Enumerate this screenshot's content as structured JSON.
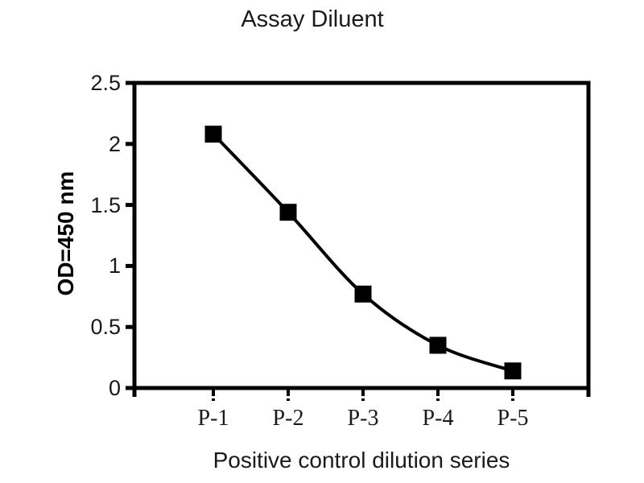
{
  "chart_data": {
    "type": "line",
    "title": "Assay Diluent",
    "xlabel": "Positive control dilution series",
    "ylabel": "OD=450 nm",
    "categories": [
      "P-1",
      "P-2",
      "P-3",
      "P-4",
      "P-5"
    ],
    "values": [
      2.08,
      1.44,
      0.77,
      0.35,
      0.14
    ],
    "ylim": [
      0,
      2.5
    ],
    "y_ticks": [
      "0",
      "0.5",
      "1",
      "1.5",
      "2",
      "2.5"
    ],
    "grid": false,
    "legend": false,
    "marker": "filled-square",
    "line_color": "#000000",
    "marker_color": "#000000",
    "frame_color": "#000000",
    "text_color": "#1a1a1a",
    "background_color": "#ffffff"
  }
}
